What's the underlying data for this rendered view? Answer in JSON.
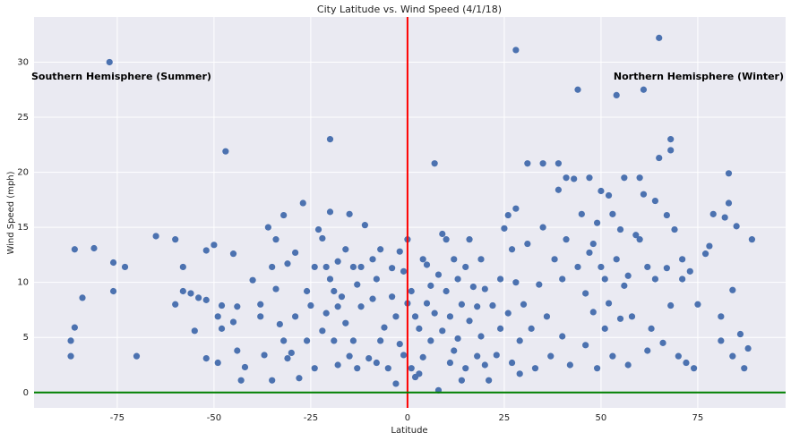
{
  "chart_data": {
    "type": "scatter",
    "title": "City Latitude vs. Wind Speed (4/1/18)",
    "x_label": "Latitude",
    "y_label": "Wind Speed (mph)",
    "annotations": [
      "Southern Hemisphere (Summer)",
      "Northern Hemisphere (Winter)"
    ],
    "color": "#4c72b0",
    "grid": true,
    "xlim": [
      -96.5,
      97.7
    ],
    "ylim": [
      -1.4,
      34.1
    ],
    "xticks": [
      -75,
      -50,
      -25,
      0,
      25,
      50,
      75
    ],
    "yticks": [
      0,
      5,
      10,
      15,
      20,
      25,
      30
    ],
    "reference_lines": [
      {
        "axis": "x",
        "value": 0,
        "color": "#ff0000"
      },
      {
        "axis": "y",
        "value": 0,
        "color": "#008000"
      }
    ],
    "x": [
      -87,
      -87,
      -86,
      -86,
      -84,
      -81,
      -77,
      -76,
      -76,
      -73,
      -70,
      -65,
      -60,
      -60,
      -58,
      -58,
      -56,
      -55,
      -54,
      -52,
      -52,
      -52,
      -50,
      -49,
      -49,
      -48,
      -48,
      -47,
      -45,
      -45,
      -44,
      -44,
      -43,
      -42,
      -40,
      -38,
      -38,
      -37,
      -36,
      -35,
      -35,
      -34,
      -34,
      -33,
      -32,
      -32,
      -31,
      -31,
      -30,
      -29,
      -29,
      -28,
      -27,
      -26,
      -26,
      -25,
      -24,
      -24,
      -23,
      -22,
      -22,
      -21,
      -21,
      -20,
      -20,
      -20,
      -19,
      -19,
      -18,
      -18,
      -18,
      -17,
      -16,
      -16,
      -15,
      -15,
      -14,
      -14,
      -13,
      -13,
      -12,
      -12,
      -11,
      -10,
      -9,
      -9,
      -8,
      -8,
      -7,
      -7,
      -6,
      -5,
      -4,
      -4,
      -3,
      -3,
      -2,
      -2,
      -1,
      -1,
      0,
      0,
      1,
      1,
      2,
      2,
      3,
      3,
      4,
      4,
      5,
      5,
      6,
      6,
      7,
      7,
      8,
      8,
      9,
      9,
      10,
      10,
      11,
      11,
      12,
      12,
      13,
      13,
      14,
      14,
      15,
      15,
      16,
      16,
      17,
      18,
      18,
      19,
      19,
      20,
      20,
      21,
      22,
      23,
      24,
      24,
      25,
      26,
      26,
      27,
      27,
      28,
      28,
      28,
      29,
      29,
      30,
      31,
      31,
      32,
      33,
      34,
      35,
      35,
      36,
      37,
      38,
      39,
      39,
      40,
      40,
      41,
      41,
      42,
      43,
      44,
      44,
      45,
      46,
      46,
      47,
      47,
      48,
      48,
      49,
      49,
      50,
      50,
      51,
      51,
      52,
      52,
      53,
      53,
      54,
      54,
      55,
      55,
      56,
      56,
      57,
      57,
      58,
      59,
      60,
      60,
      61,
      61,
      62,
      62,
      63,
      64,
      64,
      65,
      65,
      66,
      67,
      67,
      68,
      68,
      68,
      69,
      70,
      71,
      71,
      72,
      73,
      74,
      75,
      77,
      78,
      79,
      81,
      81,
      82,
      83,
      83,
      84,
      84,
      85,
      86,
      87,
      88,
      89
    ],
    "values": [
      4.7,
      3.3,
      13,
      5.9,
      8.6,
      13.1,
      30,
      11.8,
      9.2,
      11.4,
      3.3,
      14.2,
      13.9,
      8,
      11.4,
      9.2,
      9,
      5.6,
      8.6,
      12.9,
      8.4,
      3.1,
      13.4,
      6.9,
      2.7,
      7.9,
      5.8,
      21.9,
      12.6,
      6.4,
      3.8,
      7.8,
      1.1,
      2.3,
      10.2,
      8,
      6.9,
      3.4,
      15,
      11.4,
      1.1,
      13.9,
      9.4,
      6.2,
      16.1,
      4.7,
      3.1,
      11.7,
      3.6,
      12.7,
      6.9,
      1.3,
      17.2,
      9.2,
      4.7,
      7.9,
      11.4,
      2.2,
      14.8,
      14,
      5.6,
      11.4,
      7.2,
      23,
      16.4,
      10.3,
      9.2,
      4.7,
      11.9,
      7.8,
      2.5,
      8.7,
      13,
      6.3,
      16.2,
      3.3,
      11.4,
      4.7,
      9.8,
      2.2,
      11.4,
      7.8,
      15.2,
      3.1,
      8.5,
      12.1,
      10.3,
      2.7,
      13,
      4.7,
      5.9,
      2.2,
      11.3,
      8.7,
      0.8,
      6.9,
      12.8,
      4.4,
      11,
      3.4,
      13.9,
      8.1,
      9.2,
      2.2,
      6.9,
      1.4,
      5.8,
      1.7,
      12.1,
      3.2,
      11.6,
      8.1,
      9.7,
      4.7,
      20.8,
      7.2,
      0.2,
      10.7,
      14.4,
      5.6,
      13.9,
      9.2,
      2.7,
      6.9,
      12.1,
      3.8,
      10.3,
      4.9,
      8,
      1.1,
      11.4,
      2.2,
      13.9,
      6.5,
      9.6,
      3.3,
      7.8,
      12.1,
      5.1,
      9.4,
      2.5,
      1.1,
      7.9,
      3.4,
      10.3,
      5.8,
      14.9,
      16.1,
      7.2,
      13,
      2.7,
      16.7,
      31.1,
      10,
      4.7,
      1.7,
      8,
      20.8,
      13.5,
      5.8,
      2.2,
      9.8,
      15,
      20.8,
      6.9,
      3.3,
      12.1,
      20.8,
      18.4,
      10.3,
      5.1,
      19.5,
      13.9,
      2.5,
      19.4,
      27.5,
      11.4,
      16.2,
      9,
      4.3,
      12.7,
      19.5,
      13.5,
      7.3,
      15.4,
      2.2,
      18.3,
      11.4,
      10.3,
      5.8,
      17.9,
      8.1,
      16.2,
      3.3,
      27,
      12.1,
      14.8,
      6.7,
      19.5,
      9.7,
      10.6,
      2.5,
      6.9,
      14.3,
      13.9,
      19.5,
      27.5,
      18,
      11.4,
      3.8,
      5.8,
      17.4,
      10.3,
      32.2,
      21.3,
      4.5,
      16.1,
      11.3,
      23,
      22,
      7.9,
      14.8,
      3.3,
      10.3,
      12.1,
      2.7,
      11,
      2.2,
      8,
      12.6,
      13.3,
      16.2,
      6.9,
      4.7,
      15.9,
      19.9,
      17.2,
      9.3,
      3.3,
      15.1,
      5.3,
      2.2,
      4,
      13.9
    ]
  }
}
